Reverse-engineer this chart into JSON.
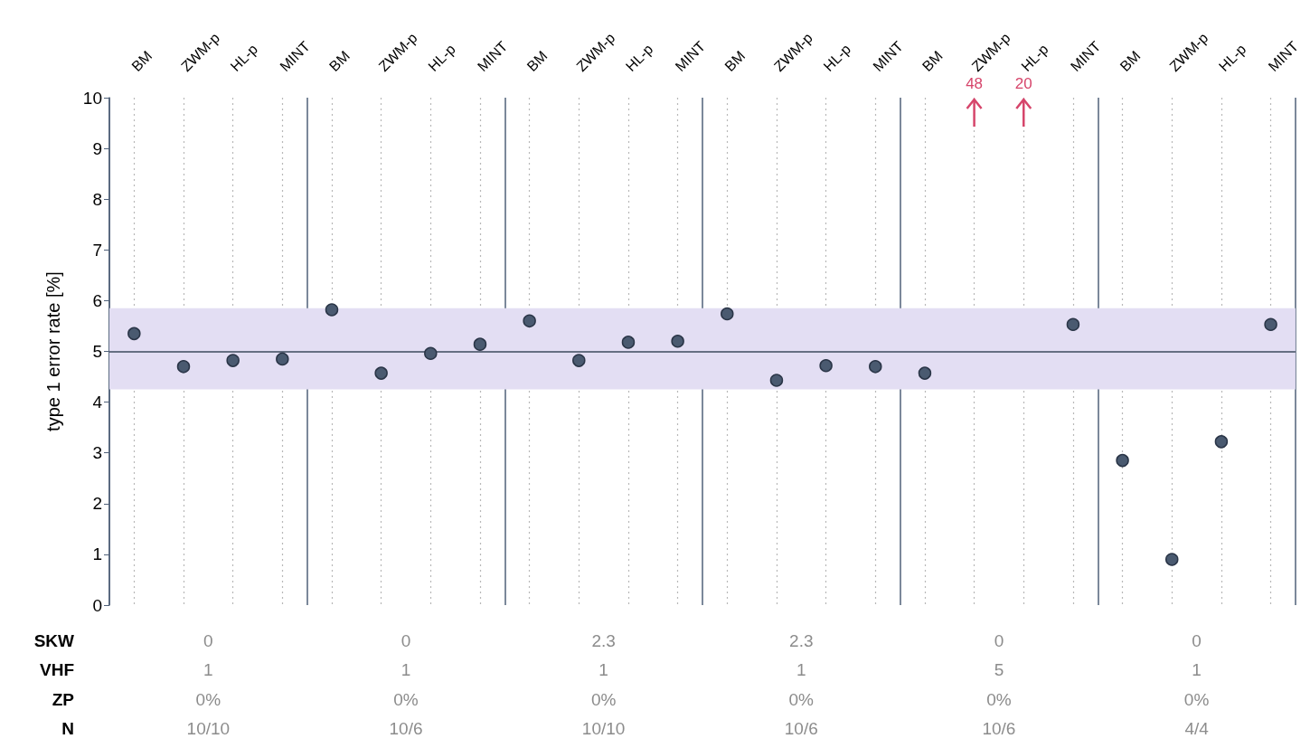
{
  "chart_data": {
    "type": "scatter",
    "ylabel": "type 1 error rate [%]",
    "categories": [
      "BM",
      "ZWM-p",
      "HL-p",
      "MINT",
      "BM",
      "ZWM-p",
      "HL-p",
      "MINT",
      "BM",
      "ZWM-p",
      "HL-p",
      "MINT",
      "BM",
      "ZWM-p",
      "HL-p",
      "MINT",
      "BM",
      "ZWM-p",
      "HL-p",
      "MINT",
      "BM",
      "ZWM-p",
      "HL-p",
      "MINT"
    ],
    "series": [
      {
        "color": "#4a5a70",
        "values": [
          5.35,
          4.7,
          4.82,
          4.85,
          5.82,
          4.57,
          4.96,
          5.14,
          5.6,
          4.82,
          5.18,
          5.2,
          5.74,
          4.43,
          4.72,
          4.7,
          4.57,
          null,
          null,
          5.53,
          2.85,
          0.9,
          3.22,
          5.53
        ]
      }
    ],
    "ylim": [
      0,
      10
    ],
    "yticks": [
      0,
      1,
      2,
      3,
      4,
      5,
      6,
      7,
      8,
      9,
      10
    ],
    "grid": "x",
    "marker": "circle",
    "ref_lines": [
      {
        "axis": "y",
        "value": 5,
        "color": "#3d4a5c"
      }
    ],
    "bands": [
      {
        "axis": "y",
        "from": 4.25,
        "to": 5.85,
        "color": "#e3def3"
      }
    ],
    "annotations": [
      "SKW",
      "VHF",
      "ZP",
      "N",
      "0",
      "0",
      "2.3",
      "2.3",
      "0",
      "0",
      "1",
      "1",
      "1",
      "1",
      "5",
      "1",
      "0%",
      "0%",
      "0%",
      "0%",
      "0%",
      "0%",
      "10/10",
      "10/6",
      "10/10",
      "10/6",
      "10/6",
      "4/4",
      "48",
      "20"
    ]
  }
}
